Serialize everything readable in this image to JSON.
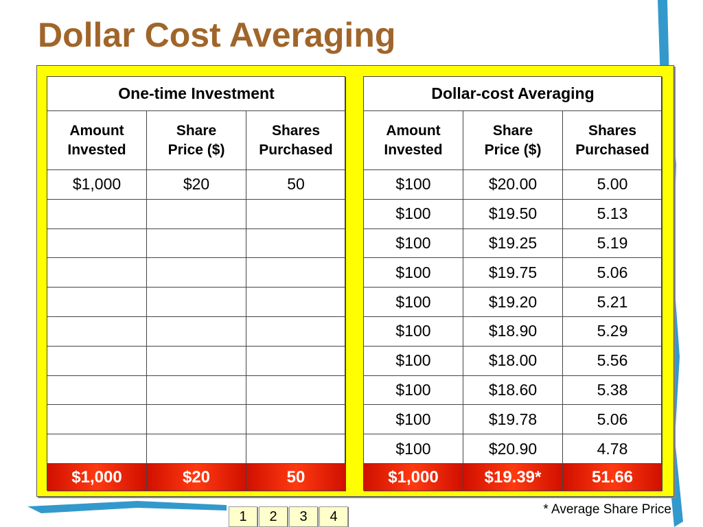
{
  "title": "Dollar Cost Averaging",
  "tables": [
    {
      "title": "One-time Investment",
      "headers": [
        [
          "Amount",
          "Invested"
        ],
        [
          "Share",
          "Price ($)"
        ],
        [
          "Shares",
          "Purchased"
        ]
      ],
      "rows": [
        [
          "$1,000",
          "$20",
          "50"
        ]
      ],
      "total": [
        "$1,000",
        "$20",
        "50"
      ]
    },
    {
      "title": "Dollar-cost Averaging",
      "headers": [
        [
          "Amount",
          "Invested"
        ],
        [
          "Share",
          "Price ($)"
        ],
        [
          "Shares",
          "Purchased"
        ]
      ],
      "rows": [
        [
          "$100",
          "$20.00",
          "5.00"
        ],
        [
          "$100",
          "$19.50",
          "5.13"
        ],
        [
          "$100",
          "$19.25",
          "5.19"
        ],
        [
          "$100",
          "$19.75",
          "5.06"
        ],
        [
          "$100",
          "$19.20",
          "5.21"
        ],
        [
          "$100",
          "$18.90",
          "5.29"
        ],
        [
          "$100",
          "$18.00",
          "5.56"
        ],
        [
          "$100",
          "$18.60",
          "5.38"
        ],
        [
          "$100",
          "$19.78",
          "5.06"
        ],
        [
          "$100",
          "$20.90",
          "4.78"
        ]
      ],
      "total": [
        "$1,000",
        "$19.39*",
        "51.66"
      ]
    }
  ],
  "footnote": "* Average Share Price",
  "nav": [
    "1",
    "2",
    "3",
    "4"
  ]
}
